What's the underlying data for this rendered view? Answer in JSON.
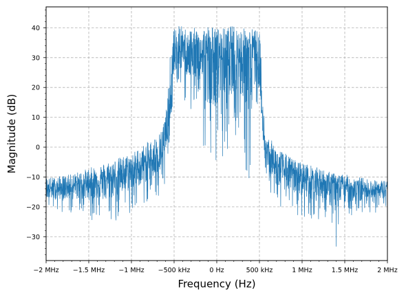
{
  "chart_data": {
    "type": "line",
    "title": "",
    "xlabel": "Frequency (Hz)",
    "ylabel": "Magnitude (dB)",
    "xlim": [
      -2000000,
      2000000
    ],
    "ylim": [
      -38,
      47
    ],
    "x_ticks": [
      {
        "value": -2000000,
        "label": "−2 MHz"
      },
      {
        "value": -1500000,
        "label": "−1.5 MHz"
      },
      {
        "value": -1000000,
        "label": "−1 MHz"
      },
      {
        "value": -500000,
        "label": "−500 kHz"
      },
      {
        "value": 0,
        "label": "0 Hz"
      },
      {
        "value": 500000,
        "label": "500 kHz"
      },
      {
        "value": 1000000,
        "label": "1 MHz"
      },
      {
        "value": 1500000,
        "label": "1.5 MHz"
      },
      {
        "value": 2000000,
        "label": "2 MHz"
      }
    ],
    "y_ticks": [
      {
        "value": -30,
        "label": "−30"
      },
      {
        "value": -20,
        "label": "−20"
      },
      {
        "value": -10,
        "label": "−10"
      },
      {
        "value": 0,
        "label": "0"
      },
      {
        "value": 10,
        "label": "10"
      },
      {
        "value": 20,
        "label": "20"
      },
      {
        "value": 30,
        "label": "30"
      },
      {
        "value": 40,
        "label": "40"
      }
    ],
    "grid": true,
    "grid_style": "dashed",
    "line_color": "#1f77b4",
    "series": [
      {
        "x": [
          -2000000,
          -1900000,
          -1800000,
          -1700000,
          -1600000,
          -1500000,
          -1400000,
          -1300000,
          -1200000,
          -1100000,
          -1000000,
          -900000,
          -800000,
          -700000,
          -650000,
          -600000,
          -560000,
          -540000,
          -520000,
          -500000,
          -480000,
          -460000,
          -440000,
          -420000,
          -400000,
          -300000,
          -200000,
          -100000,
          0,
          100000,
          200000,
          300000,
          400000,
          420000,
          440000,
          460000,
          480000,
          500000,
          520000,
          540000,
          560000,
          600000,
          650000,
          700000,
          800000,
          900000,
          1000000,
          1100000,
          1200000,
          1300000,
          1400000,
          1500000,
          1600000,
          1700000,
          1800000,
          1900000,
          2000000
        ],
        "y_mean": [
          -14,
          -14,
          -13.5,
          -13,
          -12.5,
          -12,
          -11.5,
          -11,
          -10,
          -9,
          -8,
          -7,
          -5,
          -3,
          -2,
          2,
          8,
          15,
          22,
          28,
          30,
          31,
          32,
          32,
          32,
          32,
          31,
          31,
          31,
          31,
          31,
          31,
          31,
          31,
          31,
          30,
          29,
          26,
          18,
          8,
          0,
          -3,
          -5,
          -7,
          -8,
          -9,
          -10,
          -11,
          -11.5,
          -12,
          -12.5,
          -13,
          -13.5,
          -14,
          -14,
          -14.5,
          -14.5
        ],
        "y_upper": [
          -10,
          -10,
          -9.5,
          -9,
          -8,
          -7,
          -6,
          -5,
          -4,
          -3,
          -2,
          0,
          2,
          4,
          6,
          12,
          22,
          35,
          38,
          40,
          41,
          42,
          41,
          41,
          40,
          40,
          40,
          41,
          40,
          40,
          41,
          40,
          40,
          40,
          40,
          40,
          39,
          38,
          32,
          18,
          8,
          4,
          2,
          0,
          -2,
          -4,
          -5,
          -6,
          -7,
          -8,
          -9,
          -9,
          -10,
          -10,
          -11,
          -11,
          -11
        ],
        "y_lower": [
          -21,
          -22,
          -22,
          -23,
          -24,
          -25,
          -24,
          -27,
          -25,
          -24,
          -22,
          -20,
          -19,
          -18,
          -17,
          -12,
          -8,
          5,
          14,
          20,
          20,
          21,
          20,
          18,
          17,
          10,
          0,
          -5,
          -8,
          -2,
          3,
          -3,
          -15,
          12,
          13,
          14,
          14,
          15,
          8,
          -2,
          -10,
          -15,
          -18,
          -20,
          -22,
          -23,
          -24,
          -25,
          -27,
          -27,
          -34,
          -26,
          -24,
          -24,
          -22,
          -22,
          -21
        ]
      }
    ]
  }
}
